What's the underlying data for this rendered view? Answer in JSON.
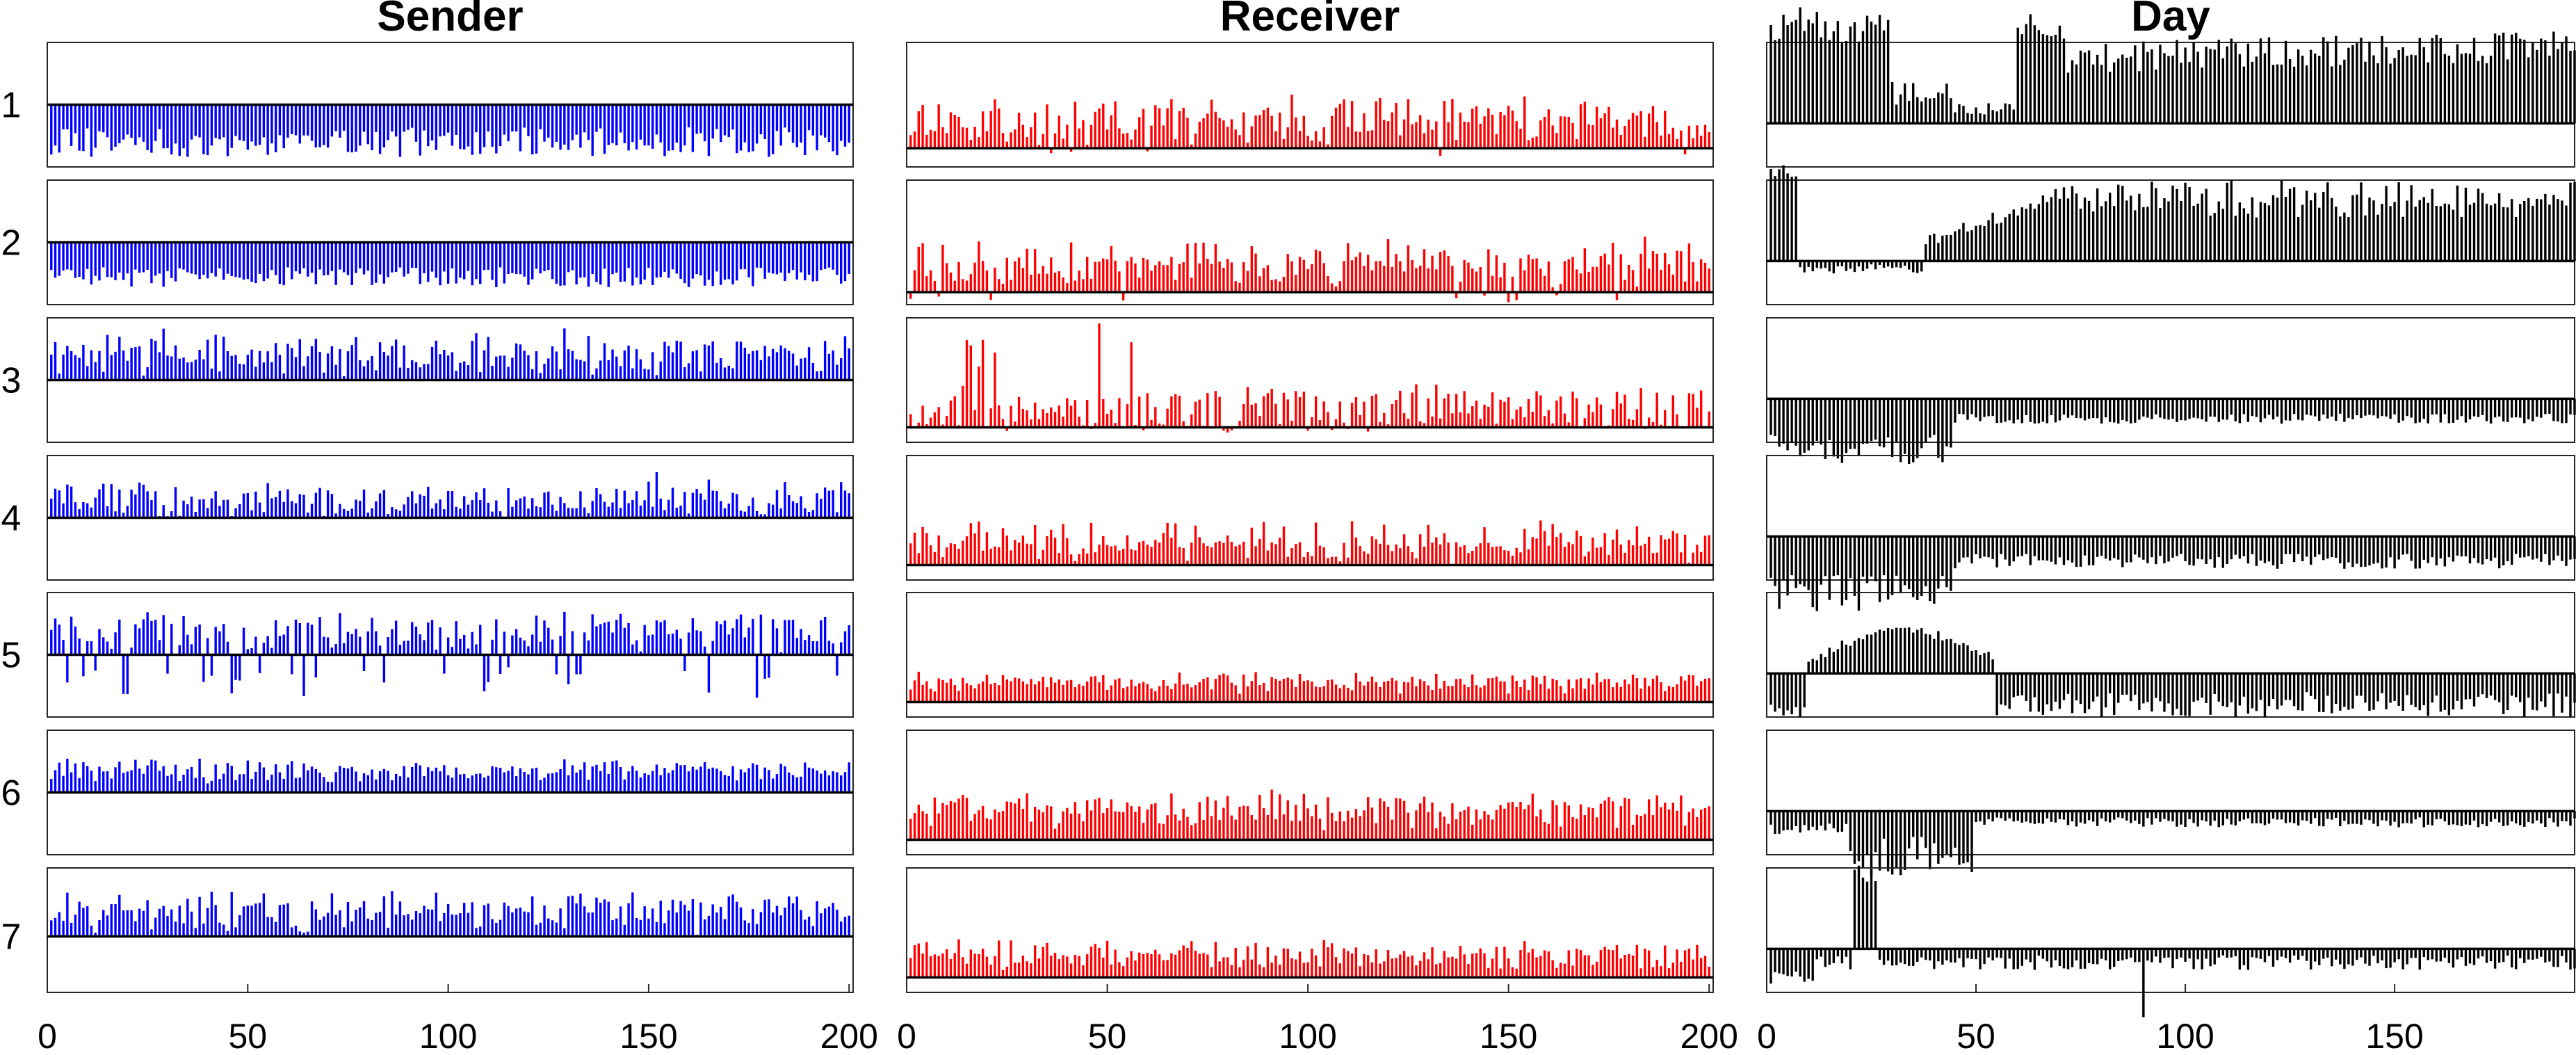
{
  "chart_data": {
    "type": "bar",
    "layout": "small-multiples: 7 rows x 3 columns of stem/bar plots",
    "grid": false,
    "legend": "none",
    "row_labels": [
      "1",
      "2",
      "3",
      "4",
      "5",
      "6",
      "7"
    ],
    "x_tick_labels": {
      "Sender": [
        "0",
        "50",
        "100",
        "150",
        "200"
      ],
      "Receiver": [
        "0",
        "50",
        "100",
        "150",
        "200"
      ],
      "Day": [
        "0",
        "50",
        "100",
        "150"
      ]
    },
    "panels": [
      {
        "title": "Sender",
        "color": "#0000ff",
        "n": 200,
        "xlim": [
          0,
          201
        ],
        "xticks": [
          0,
          50,
          100,
          150,
          200
        ],
        "rows": [
          {
            "baseline": 0.5,
            "up": 0.0,
            "down": 0.3,
            "downNoise": 0.12,
            "seed": 11
          },
          {
            "baseline": 0.5,
            "up": 0.0,
            "down": 0.28,
            "downNoise": 0.08,
            "seed": 12
          },
          {
            "baseline": 0.5,
            "up": 0.28,
            "noise": 0.12,
            "sp": 0.99,
            "seed": 13
          },
          {
            "baseline": 0.5,
            "up": 0.2,
            "noise": 0.1,
            "sp": 0.98,
            "seed": 14
          },
          {
            "baseline": 0.5,
            "up": 0.25,
            "noise": 0.12,
            "neg": 0.15,
            "negAmp": 0.25,
            "seed": 15
          },
          {
            "baseline": 0.5,
            "up": 0.24,
            "noise": 0.04,
            "seed": 16
          },
          {
            "baseline": 0.55,
            "up": 0.27,
            "noise": 0.12,
            "seed": 17
          }
        ]
      },
      {
        "title": "Receiver",
        "color": "#ff0000",
        "n": 200,
        "xlim": [
          0,
          201
        ],
        "xticks": [
          0,
          50,
          100,
          150,
          200
        ],
        "rows": [
          {
            "baseline": 0.85,
            "up": 0.3,
            "noise": 0.15,
            "neg": 0.05,
            "negAmp": 0.05,
            "seed": 21
          },
          {
            "baseline": 0.9,
            "up": 0.32,
            "noise": 0.14,
            "neg": 0.06,
            "negAmp": 0.06,
            "seed": 22
          },
          {
            "baseline": 0.88,
            "up": 0.2,
            "noise": 0.17,
            "spikeFront": 1,
            "seed": 23
          },
          {
            "baseline": 0.88,
            "up": 0.25,
            "noise": 0.12,
            "seed": 24
          },
          {
            "baseline": 0.88,
            "up": 0.22,
            "noise": 0.04,
            "seed": 25
          },
          {
            "baseline": 0.88,
            "up": 0.33,
            "noise": 0.08,
            "seed": 26
          },
          {
            "baseline": 0.88,
            "up": 0.25,
            "noise": 0.08,
            "seed": 27
          }
        ]
      },
      {
        "title": "Day",
        "color": "#000000",
        "n": 198,
        "xlim": [
          0,
          193
        ],
        "xticks": [
          0,
          50,
          100,
          150
        ],
        "rows": [
          {
            "baseline": 0.65,
            "profile": "day1",
            "seed": 31
          },
          {
            "baseline": 0.65,
            "profile": "day2",
            "seed": 32
          },
          {
            "baseline": 0.65,
            "profile": "day3",
            "seed": 33
          },
          {
            "baseline": 0.65,
            "profile": "day4",
            "seed": 34
          },
          {
            "baseline": 0.65,
            "profile": "day5",
            "seed": 35
          },
          {
            "baseline": 0.65,
            "profile": "day6",
            "seed": 36
          },
          {
            "baseline": 0.65,
            "profile": "day7",
            "seed": 37
          }
        ]
      }
    ]
  }
}
